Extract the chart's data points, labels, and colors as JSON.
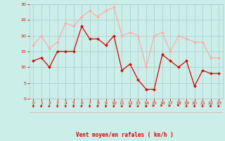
{
  "x": [
    0,
    1,
    2,
    3,
    4,
    5,
    6,
    7,
    8,
    9,
    10,
    11,
    12,
    13,
    14,
    15,
    16,
    17,
    18,
    19,
    20,
    21,
    22,
    23
  ],
  "wind_avg": [
    12,
    13,
    10,
    15,
    15,
    15,
    23,
    19,
    19,
    17,
    20,
    9,
    11,
    6,
    3,
    3,
    14,
    12,
    10,
    12,
    4,
    9,
    8,
    8
  ],
  "wind_gust": [
    17,
    20,
    16,
    18,
    24,
    23,
    26,
    28,
    26,
    28,
    29,
    20,
    21,
    20,
    10,
    20,
    21,
    15,
    20,
    19,
    18,
    18,
    13,
    13
  ],
  "bg_color": "#cceee8",
  "grid_color": "#aacccc",
  "avg_color": "#dd0000",
  "gust_color": "#ffaaaa",
  "xlabel": "Vent moyen/en rafales ( km/h )",
  "xlabel_color": "#dd0000",
  "tick_color": "#dd0000",
  "ylim": [
    0,
    30
  ],
  "yticks": [
    0,
    5,
    10,
    15,
    20,
    25,
    30
  ],
  "xticks": [
    0,
    1,
    2,
    3,
    4,
    5,
    6,
    7,
    8,
    9,
    10,
    11,
    12,
    13,
    14,
    15,
    16,
    17,
    18,
    19,
    20,
    21,
    22,
    23
  ],
  "arrow_angles": [
    180,
    200,
    210,
    180,
    180,
    190,
    200,
    180,
    190,
    185,
    200,
    210,
    200,
    215,
    200,
    270,
    280,
    270,
    320,
    195,
    190,
    185,
    200,
    210
  ]
}
